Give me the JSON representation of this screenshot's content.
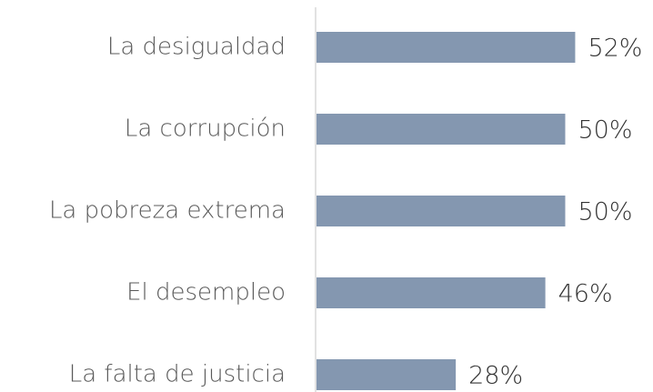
{
  "chart_data": {
    "type": "bar",
    "orientation": "horizontal",
    "categories": [
      "La desigualdad",
      "La corrupción",
      "La pobreza extrema",
      "El desempleo",
      "La falta de justicia"
    ],
    "values": [
      52,
      50,
      50,
      46,
      28
    ],
    "value_labels": [
      "52%",
      "50%",
      "50%",
      "46%",
      "28%"
    ],
    "color": "#8497b0"
  }
}
